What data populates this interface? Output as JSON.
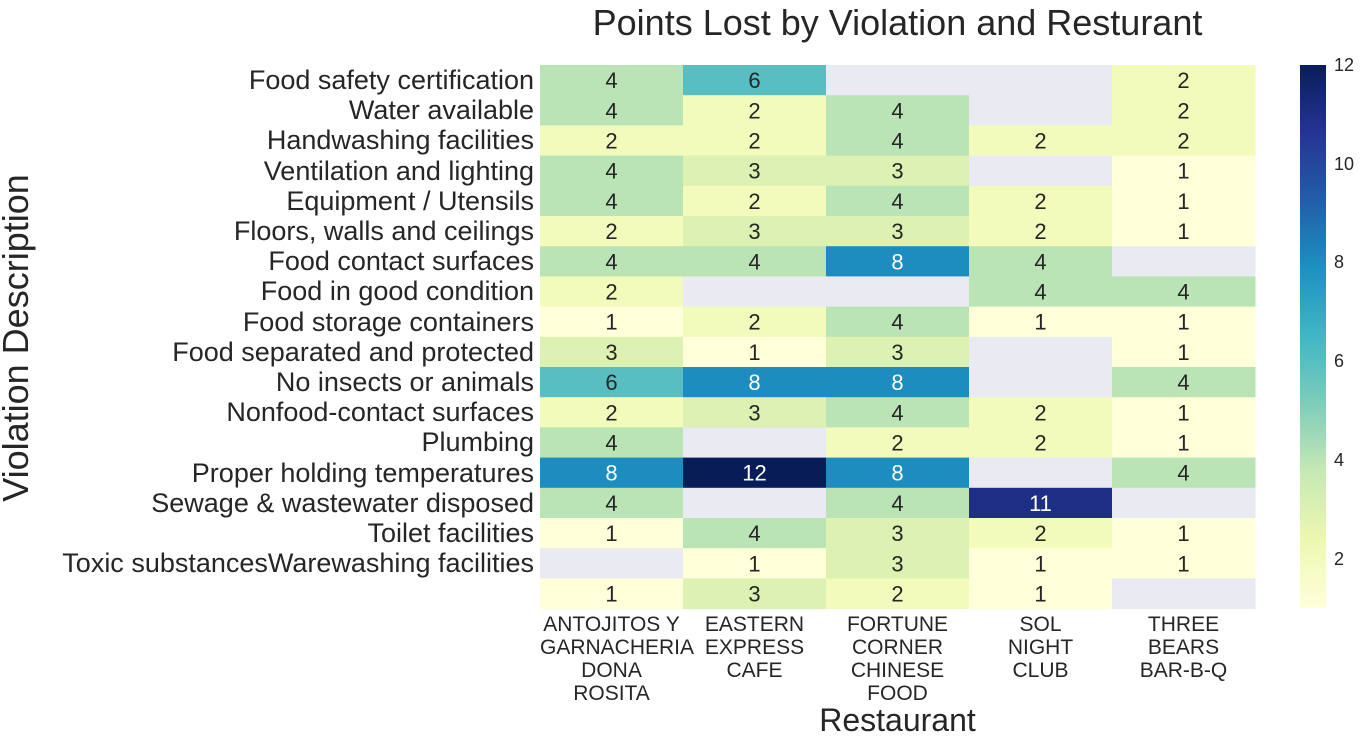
{
  "chart_data": {
    "type": "heatmap",
    "title": "Points Lost by Violation and Resturant",
    "xlabel": "Restaurant",
    "ylabel": "Violation Description",
    "columns": [
      [
        "ANTOJITOS Y",
        "GARNACHERIA",
        "DONA",
        "ROSITA"
      ],
      [
        "EASTERN",
        "EXPRESS",
        "CAFE"
      ],
      [
        "FORTUNE",
        "CORNER",
        "CHINESE",
        "FOOD"
      ],
      [
        "SOL",
        "NIGHT",
        "CLUB"
      ],
      [
        "THREE",
        "BEARS",
        "BAR-B-Q"
      ]
    ],
    "row_labels": [
      "Food safety certification",
      "Water available",
      "Handwashing facilities",
      "Ventilation and lighting",
      "Equipment / Utensils",
      "Floors, walls and ceilings",
      "Food contact surfaces",
      "Food in good condition",
      "Food storage containers",
      "Food separated and protected",
      "No insects or animals",
      "Nonfood-contact surfaces",
      "Plumbing",
      "Proper holding temperatures",
      "Sewage & wastewater disposed",
      "Toilet facilities",
      "Toxic substancesWarewashing facilities",
      ""
    ],
    "values": [
      [
        4,
        6,
        null,
        null,
        2
      ],
      [
        4,
        2,
        4,
        null,
        2
      ],
      [
        2,
        2,
        4,
        2,
        2
      ],
      [
        4,
        3,
        3,
        null,
        1
      ],
      [
        4,
        2,
        4,
        2,
        1
      ],
      [
        2,
        3,
        3,
        2,
        1
      ],
      [
        4,
        4,
        8,
        4,
        null
      ],
      [
        2,
        null,
        null,
        4,
        4
      ],
      [
        1,
        2,
        4,
        1,
        1
      ],
      [
        3,
        1,
        3,
        null,
        1
      ],
      [
        6,
        8,
        8,
        null,
        4
      ],
      [
        2,
        3,
        4,
        2,
        1
      ],
      [
        4,
        null,
        2,
        2,
        1
      ],
      [
        8,
        12,
        8,
        null,
        4
      ],
      [
        4,
        null,
        4,
        11,
        null
      ],
      [
        1,
        4,
        3,
        2,
        1
      ],
      [
        null,
        1,
        3,
        1,
        1
      ],
      [
        1,
        3,
        2,
        1,
        null
      ]
    ],
    "colormap": "YlGnBu",
    "missing_color": "#eaeaf2",
    "vmin": 1,
    "vmax": 12,
    "colorbar_ticks": [
      2,
      4,
      6,
      8,
      10,
      12
    ],
    "annotate": true
  }
}
